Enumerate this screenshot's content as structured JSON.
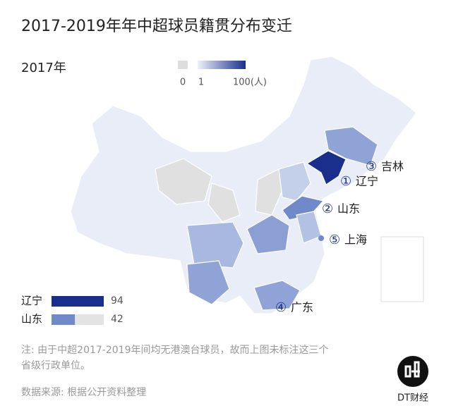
{
  "header": {
    "title": "2017-2019年年中超球员籍贯分布变迁",
    "year": "2017年"
  },
  "legend": {
    "labels": [
      "0",
      "1",
      "100(人)"
    ]
  },
  "ranks": [
    {
      "num": "③",
      "name": "吉林"
    },
    {
      "num": "①",
      "name": "辽宁"
    },
    {
      "num": "②",
      "name": "山东"
    },
    {
      "num": "⑤",
      "name": "上海"
    },
    {
      "num": "④",
      "name": "广东"
    }
  ],
  "bars": [
    {
      "name": "辽宁",
      "value": 94
    },
    {
      "name": "山东",
      "value": 42
    }
  ],
  "note": [
    "注: 由于中超2017-2019年间均无港澳台球员，故而上图未标注这三个",
    "省级行政单位。"
  ],
  "source": "数据来源: 根据公开资料整理",
  "logo": "DT财经"
}
